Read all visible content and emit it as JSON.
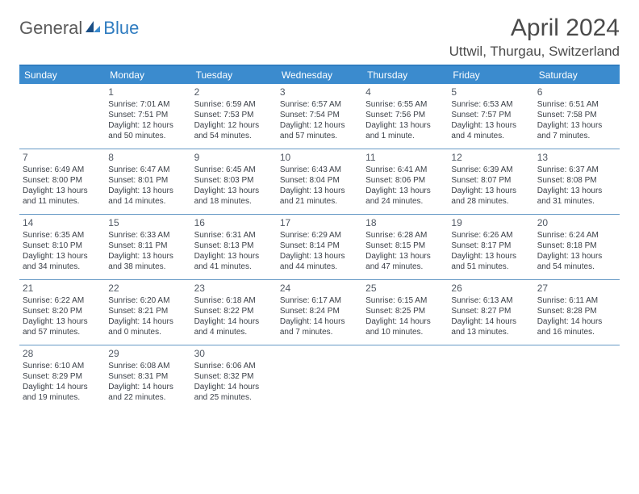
{
  "logo": {
    "text1": "General",
    "text2": "Blue"
  },
  "title": "April 2024",
  "location": "Uttwil, Thurgau, Switzerland",
  "colors": {
    "accent": "#3b8bce",
    "border": "#6699c5",
    "text_muted": "#5a5a5a",
    "text_body": "#3a3f47",
    "logo_blue": "#2f7cc0"
  },
  "day_headers": [
    "Sunday",
    "Monday",
    "Tuesday",
    "Wednesday",
    "Thursday",
    "Friday",
    "Saturday"
  ],
  "weeks": [
    [
      {
        "num": "",
        "sunrise": "",
        "sunset": "",
        "daylight": ""
      },
      {
        "num": "1",
        "sunrise": "Sunrise: 7:01 AM",
        "sunset": "Sunset: 7:51 PM",
        "daylight": "Daylight: 12 hours and 50 minutes."
      },
      {
        "num": "2",
        "sunrise": "Sunrise: 6:59 AM",
        "sunset": "Sunset: 7:53 PM",
        "daylight": "Daylight: 12 hours and 54 minutes."
      },
      {
        "num": "3",
        "sunrise": "Sunrise: 6:57 AM",
        "sunset": "Sunset: 7:54 PM",
        "daylight": "Daylight: 12 hours and 57 minutes."
      },
      {
        "num": "4",
        "sunrise": "Sunrise: 6:55 AM",
        "sunset": "Sunset: 7:56 PM",
        "daylight": "Daylight: 13 hours and 1 minute."
      },
      {
        "num": "5",
        "sunrise": "Sunrise: 6:53 AM",
        "sunset": "Sunset: 7:57 PM",
        "daylight": "Daylight: 13 hours and 4 minutes."
      },
      {
        "num": "6",
        "sunrise": "Sunrise: 6:51 AM",
        "sunset": "Sunset: 7:58 PM",
        "daylight": "Daylight: 13 hours and 7 minutes."
      }
    ],
    [
      {
        "num": "7",
        "sunrise": "Sunrise: 6:49 AM",
        "sunset": "Sunset: 8:00 PM",
        "daylight": "Daylight: 13 hours and 11 minutes."
      },
      {
        "num": "8",
        "sunrise": "Sunrise: 6:47 AM",
        "sunset": "Sunset: 8:01 PM",
        "daylight": "Daylight: 13 hours and 14 minutes."
      },
      {
        "num": "9",
        "sunrise": "Sunrise: 6:45 AM",
        "sunset": "Sunset: 8:03 PM",
        "daylight": "Daylight: 13 hours and 18 minutes."
      },
      {
        "num": "10",
        "sunrise": "Sunrise: 6:43 AM",
        "sunset": "Sunset: 8:04 PM",
        "daylight": "Daylight: 13 hours and 21 minutes."
      },
      {
        "num": "11",
        "sunrise": "Sunrise: 6:41 AM",
        "sunset": "Sunset: 8:06 PM",
        "daylight": "Daylight: 13 hours and 24 minutes."
      },
      {
        "num": "12",
        "sunrise": "Sunrise: 6:39 AM",
        "sunset": "Sunset: 8:07 PM",
        "daylight": "Daylight: 13 hours and 28 minutes."
      },
      {
        "num": "13",
        "sunrise": "Sunrise: 6:37 AM",
        "sunset": "Sunset: 8:08 PM",
        "daylight": "Daylight: 13 hours and 31 minutes."
      }
    ],
    [
      {
        "num": "14",
        "sunrise": "Sunrise: 6:35 AM",
        "sunset": "Sunset: 8:10 PM",
        "daylight": "Daylight: 13 hours and 34 minutes."
      },
      {
        "num": "15",
        "sunrise": "Sunrise: 6:33 AM",
        "sunset": "Sunset: 8:11 PM",
        "daylight": "Daylight: 13 hours and 38 minutes."
      },
      {
        "num": "16",
        "sunrise": "Sunrise: 6:31 AM",
        "sunset": "Sunset: 8:13 PM",
        "daylight": "Daylight: 13 hours and 41 minutes."
      },
      {
        "num": "17",
        "sunrise": "Sunrise: 6:29 AM",
        "sunset": "Sunset: 8:14 PM",
        "daylight": "Daylight: 13 hours and 44 minutes."
      },
      {
        "num": "18",
        "sunrise": "Sunrise: 6:28 AM",
        "sunset": "Sunset: 8:15 PM",
        "daylight": "Daylight: 13 hours and 47 minutes."
      },
      {
        "num": "19",
        "sunrise": "Sunrise: 6:26 AM",
        "sunset": "Sunset: 8:17 PM",
        "daylight": "Daylight: 13 hours and 51 minutes."
      },
      {
        "num": "20",
        "sunrise": "Sunrise: 6:24 AM",
        "sunset": "Sunset: 8:18 PM",
        "daylight": "Daylight: 13 hours and 54 minutes."
      }
    ],
    [
      {
        "num": "21",
        "sunrise": "Sunrise: 6:22 AM",
        "sunset": "Sunset: 8:20 PM",
        "daylight": "Daylight: 13 hours and 57 minutes."
      },
      {
        "num": "22",
        "sunrise": "Sunrise: 6:20 AM",
        "sunset": "Sunset: 8:21 PM",
        "daylight": "Daylight: 14 hours and 0 minutes."
      },
      {
        "num": "23",
        "sunrise": "Sunrise: 6:18 AM",
        "sunset": "Sunset: 8:22 PM",
        "daylight": "Daylight: 14 hours and 4 minutes."
      },
      {
        "num": "24",
        "sunrise": "Sunrise: 6:17 AM",
        "sunset": "Sunset: 8:24 PM",
        "daylight": "Daylight: 14 hours and 7 minutes."
      },
      {
        "num": "25",
        "sunrise": "Sunrise: 6:15 AM",
        "sunset": "Sunset: 8:25 PM",
        "daylight": "Daylight: 14 hours and 10 minutes."
      },
      {
        "num": "26",
        "sunrise": "Sunrise: 6:13 AM",
        "sunset": "Sunset: 8:27 PM",
        "daylight": "Daylight: 14 hours and 13 minutes."
      },
      {
        "num": "27",
        "sunrise": "Sunrise: 6:11 AM",
        "sunset": "Sunset: 8:28 PM",
        "daylight": "Daylight: 14 hours and 16 minutes."
      }
    ],
    [
      {
        "num": "28",
        "sunrise": "Sunrise: 6:10 AM",
        "sunset": "Sunset: 8:29 PM",
        "daylight": "Daylight: 14 hours and 19 minutes."
      },
      {
        "num": "29",
        "sunrise": "Sunrise: 6:08 AM",
        "sunset": "Sunset: 8:31 PM",
        "daylight": "Daylight: 14 hours and 22 minutes."
      },
      {
        "num": "30",
        "sunrise": "Sunrise: 6:06 AM",
        "sunset": "Sunset: 8:32 PM",
        "daylight": "Daylight: 14 hours and 25 minutes."
      },
      {
        "num": "",
        "sunrise": "",
        "sunset": "",
        "daylight": ""
      },
      {
        "num": "",
        "sunrise": "",
        "sunset": "",
        "daylight": ""
      },
      {
        "num": "",
        "sunrise": "",
        "sunset": "",
        "daylight": ""
      },
      {
        "num": "",
        "sunrise": "",
        "sunset": "",
        "daylight": ""
      }
    ]
  ]
}
